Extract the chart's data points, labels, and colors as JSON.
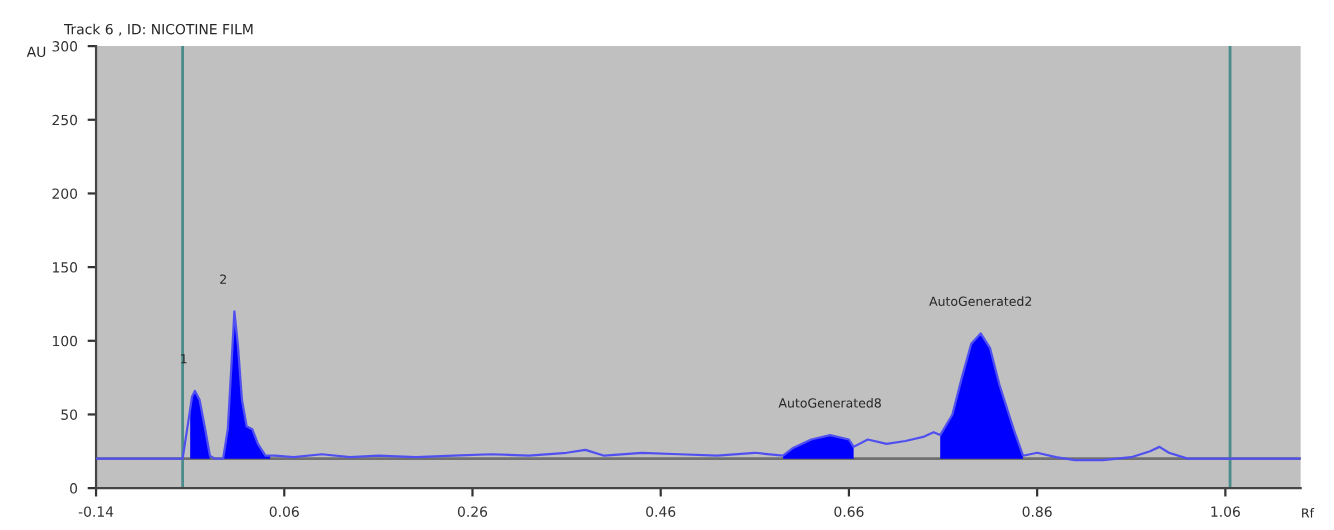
{
  "chart_data": {
    "type": "line",
    "title": "Track 6 , ID: NICOTINE FILM",
    "xlabel": "Rf",
    "ylabel": "AU",
    "xlim": [
      -0.14,
      1.14
    ],
    "ylim": [
      0,
      300
    ],
    "xticks": [
      -0.14,
      0.06,
      0.26,
      0.46,
      0.66,
      0.86,
      1.06
    ],
    "yticks": [
      0,
      50,
      100,
      150,
      200,
      250,
      300
    ],
    "grid": false,
    "series": [
      {
        "color": "#5050f0",
        "x": [
          -0.14,
          -0.048,
          -0.042,
          -0.038,
          -0.035,
          -0.03,
          -0.024,
          -0.019,
          -0.014,
          -0.005,
          0.0,
          0.004,
          0.007,
          0.011,
          0.015,
          0.02,
          0.026,
          0.032,
          0.04,
          0.05,
          0.07,
          0.1,
          0.13,
          0.16,
          0.2,
          0.24,
          0.28,
          0.32,
          0.36,
          0.38,
          0.4,
          0.44,
          0.48,
          0.52,
          0.56,
          0.59,
          0.6,
          0.62,
          0.64,
          0.66,
          0.665,
          0.68,
          0.7,
          0.72,
          0.74,
          0.75,
          0.757,
          0.77,
          0.78,
          0.79,
          0.8,
          0.81,
          0.82,
          0.835,
          0.845,
          0.86,
          0.88,
          0.9,
          0.93,
          0.96,
          0.98,
          0.99,
          1.0,
          1.02,
          1.06,
          1.14
        ],
        "values": [
          20,
          20,
          45,
          62,
          66,
          60,
          40,
          22,
          20,
          20,
          40,
          85,
          120,
          95,
          60,
          42,
          40,
          30,
          22,
          22,
          21,
          23,
          21,
          22,
          21,
          22,
          23,
          22,
          24,
          26,
          22,
          24,
          23,
          22,
          24,
          22,
          27,
          33,
          36,
          33,
          28,
          33,
          30,
          32,
          35,
          38,
          36,
          50,
          75,
          98,
          105,
          95,
          70,
          40,
          22,
          24,
          21,
          19,
          19,
          21,
          25,
          28,
          24,
          20,
          20,
          20
        ]
      },
      {
        "type": "area",
        "color": "#0000ff",
        "x": [
          -0.04,
          -0.038,
          -0.035,
          -0.03,
          -0.024,
          -0.019
        ],
        "values": [
          52,
          62,
          66,
          60,
          40,
          22
        ]
      },
      {
        "type": "area",
        "color": "#0000ff",
        "x": [
          -0.005,
          0.0,
          0.004,
          0.007,
          0.011,
          0.015,
          0.02,
          0.026,
          0.032,
          0.04,
          0.045
        ],
        "values": [
          20,
          40,
          85,
          120,
          95,
          60,
          42,
          40,
          30,
          22,
          22
        ]
      },
      {
        "type": "area",
        "color": "#0000ff",
        "x": [
          0.59,
          0.6,
          0.62,
          0.64,
          0.66,
          0.665
        ],
        "values": [
          22,
          27,
          33,
          36,
          33,
          28
        ]
      },
      {
        "type": "area",
        "color": "#0000ff",
        "x": [
          0.757,
          0.77,
          0.78,
          0.79,
          0.8,
          0.81,
          0.82,
          0.835,
          0.845
        ],
        "values": [
          36,
          50,
          75,
          98,
          105,
          95,
          70,
          40,
          22
        ]
      }
    ],
    "ref_lines": [
      {
        "axis": "x",
        "value": -0.048,
        "color": "#4a8c8c"
      },
      {
        "axis": "x",
        "value": 1.065,
        "color": "#4a8c8c"
      },
      {
        "axis": "y",
        "value": 20,
        "color": "#707070"
      }
    ],
    "annotations": [
      {
        "text": "1",
        "x": -0.035,
        "y": 66
      },
      {
        "text": "2",
        "x": 0.007,
        "y": 120
      },
      {
        "text": "AutoGenerated8",
        "x": 0.64,
        "y": 36
      },
      {
        "text": "AutoGenerated2",
        "x": 0.8,
        "y": 105
      }
    ]
  }
}
